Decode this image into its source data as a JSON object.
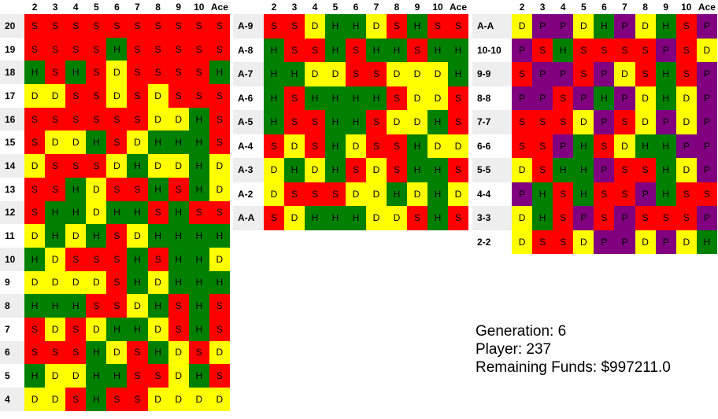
{
  "columns": [
    "2",
    "3",
    "4",
    "5",
    "6",
    "7",
    "8",
    "9",
    "10",
    "Ace"
  ],
  "tables": [
    {
      "name": "hard",
      "rows": [
        {
          "label": "20",
          "cells": [
            "S",
            "S",
            "S",
            "S",
            "S",
            "S",
            "S",
            "S",
            "S",
            "S"
          ]
        },
        {
          "label": "19",
          "cells": [
            "S",
            "S",
            "S",
            "S",
            "H",
            "S",
            "S",
            "S",
            "S",
            "S"
          ]
        },
        {
          "label": "18",
          "cells": [
            "H",
            "S",
            "H",
            "S",
            "D",
            "S",
            "S",
            "S",
            "S",
            "H"
          ]
        },
        {
          "label": "17",
          "cells": [
            "D",
            "D",
            "S",
            "S",
            "D",
            "S",
            "D",
            "S",
            "S",
            "S"
          ]
        },
        {
          "label": "16",
          "cells": [
            "S",
            "S",
            "S",
            "S",
            "S",
            "S",
            "D",
            "D",
            "H",
            "S"
          ]
        },
        {
          "label": "15",
          "cells": [
            "S",
            "D",
            "D",
            "H",
            "S",
            "D",
            "H",
            "H",
            "H",
            "S"
          ]
        },
        {
          "label": "14",
          "cells": [
            "D",
            "S",
            "S",
            "S",
            "D",
            "H",
            "D",
            "D",
            "H",
            "D"
          ]
        },
        {
          "label": "13",
          "cells": [
            "S",
            "S",
            "H",
            "D",
            "S",
            "S",
            "H",
            "S",
            "H",
            "D"
          ]
        },
        {
          "label": "12",
          "cells": [
            "S",
            "H",
            "H",
            "D",
            "H",
            "H",
            "S",
            "H",
            "S",
            "S"
          ]
        },
        {
          "label": "11",
          "cells": [
            "D",
            "H",
            "D",
            "H",
            "S",
            "D",
            "H",
            "H",
            "H",
            "H"
          ]
        },
        {
          "label": "10",
          "cells": [
            "H",
            "D",
            "S",
            "S",
            "S",
            "H",
            "S",
            "H",
            "H",
            "D"
          ]
        },
        {
          "label": "9",
          "cells": [
            "D",
            "D",
            "D",
            "D",
            "S",
            "H",
            "D",
            "H",
            "H",
            "H"
          ]
        },
        {
          "label": "8",
          "cells": [
            "H",
            "H",
            "H",
            "S",
            "S",
            "D",
            "H",
            "S",
            "H",
            "S"
          ]
        },
        {
          "label": "7",
          "cells": [
            "S",
            "D",
            "S",
            "D",
            "H",
            "H",
            "D",
            "S",
            "H",
            "S"
          ]
        },
        {
          "label": "6",
          "cells": [
            "S",
            "S",
            "S",
            "H",
            "D",
            "S",
            "H",
            "D",
            "S",
            "D"
          ]
        },
        {
          "label": "5",
          "cells": [
            "H",
            "D",
            "D",
            "H",
            "H",
            "S",
            "S",
            "D",
            "H",
            "S"
          ]
        },
        {
          "label": "4",
          "cells": [
            "D",
            "D",
            "S",
            "H",
            "S",
            "S",
            "D",
            "D",
            "D",
            "D"
          ]
        }
      ]
    },
    {
      "name": "soft",
      "rows": [
        {
          "label": "A-9",
          "cells": [
            "S",
            "S",
            "D",
            "H",
            "H",
            "D",
            "S",
            "H",
            "S",
            "S"
          ]
        },
        {
          "label": "A-8",
          "cells": [
            "H",
            "S",
            "S",
            "H",
            "S",
            "H",
            "H",
            "S",
            "H",
            "H"
          ]
        },
        {
          "label": "A-7",
          "cells": [
            "H",
            "H",
            "D",
            "D",
            "S",
            "S",
            "D",
            "D",
            "D",
            "H"
          ]
        },
        {
          "label": "A-6",
          "cells": [
            "H",
            "S",
            "H",
            "H",
            "H",
            "H",
            "S",
            "D",
            "D",
            "S"
          ]
        },
        {
          "label": "A-5",
          "cells": [
            "H",
            "S",
            "S",
            "H",
            "H",
            "S",
            "D",
            "D",
            "H",
            "S"
          ]
        },
        {
          "label": "A-4",
          "cells": [
            "S",
            "D",
            "S",
            "H",
            "D",
            "S",
            "S",
            "H",
            "D",
            "D"
          ]
        },
        {
          "label": "A-3",
          "cells": [
            "D",
            "H",
            "D",
            "H",
            "S",
            "D",
            "S",
            "H",
            "H",
            "S"
          ]
        },
        {
          "label": "A-2",
          "cells": [
            "D",
            "S",
            "S",
            "S",
            "D",
            "D",
            "H",
            "D",
            "H",
            "D"
          ]
        },
        {
          "label": "A-A",
          "cells": [
            "S",
            "D",
            "H",
            "H",
            "H",
            "D",
            "D",
            "S",
            "H",
            "S"
          ]
        }
      ]
    },
    {
      "name": "pairs",
      "rows": [
        {
          "label": "A-A",
          "cells": [
            "D",
            "P",
            "P",
            "D",
            "H",
            "P",
            "D",
            "H",
            "S",
            "P"
          ]
        },
        {
          "label": "10-10",
          "cells": [
            "P",
            "S",
            "H",
            "S",
            "S",
            "S",
            "S",
            "P",
            "S",
            "D"
          ]
        },
        {
          "label": "9-9",
          "cells": [
            "S",
            "P",
            "P",
            "S",
            "P",
            "D",
            "S",
            "H",
            "S",
            "P"
          ]
        },
        {
          "label": "8-8",
          "cells": [
            "P",
            "P",
            "S",
            "P",
            "H",
            "P",
            "D",
            "H",
            "D",
            "P"
          ]
        },
        {
          "label": "7-7",
          "cells": [
            "S",
            "S",
            "S",
            "D",
            "P",
            "S",
            "D",
            "P",
            "D",
            "P"
          ]
        },
        {
          "label": "6-6",
          "cells": [
            "S",
            "S",
            "P",
            "H",
            "S",
            "D",
            "H",
            "H",
            "P",
            "P"
          ]
        },
        {
          "label": "5-5",
          "cells": [
            "D",
            "S",
            "H",
            "H",
            "P",
            "S",
            "S",
            "H",
            "D",
            "P"
          ]
        },
        {
          "label": "4-4",
          "cells": [
            "P",
            "H",
            "S",
            "H",
            "S",
            "S",
            "P",
            "H",
            "S",
            "S"
          ]
        },
        {
          "label": "3-3",
          "cells": [
            "D",
            "H",
            "S",
            "P",
            "S",
            "P",
            "S",
            "S",
            "S",
            "P"
          ]
        },
        {
          "label": "2-2",
          "cells": [
            "D",
            "S",
            "S",
            "D",
            "P",
            "P",
            "D",
            "P",
            "D",
            "H"
          ]
        }
      ]
    }
  ],
  "info": {
    "generation": "Generation: 6",
    "player": "Player: 237",
    "funds": "Remaining Funds: $997211.0"
  },
  "colors": {
    "S": "#ff0000",
    "H": "#008000",
    "D": "#ffff00",
    "P": "#800080"
  }
}
